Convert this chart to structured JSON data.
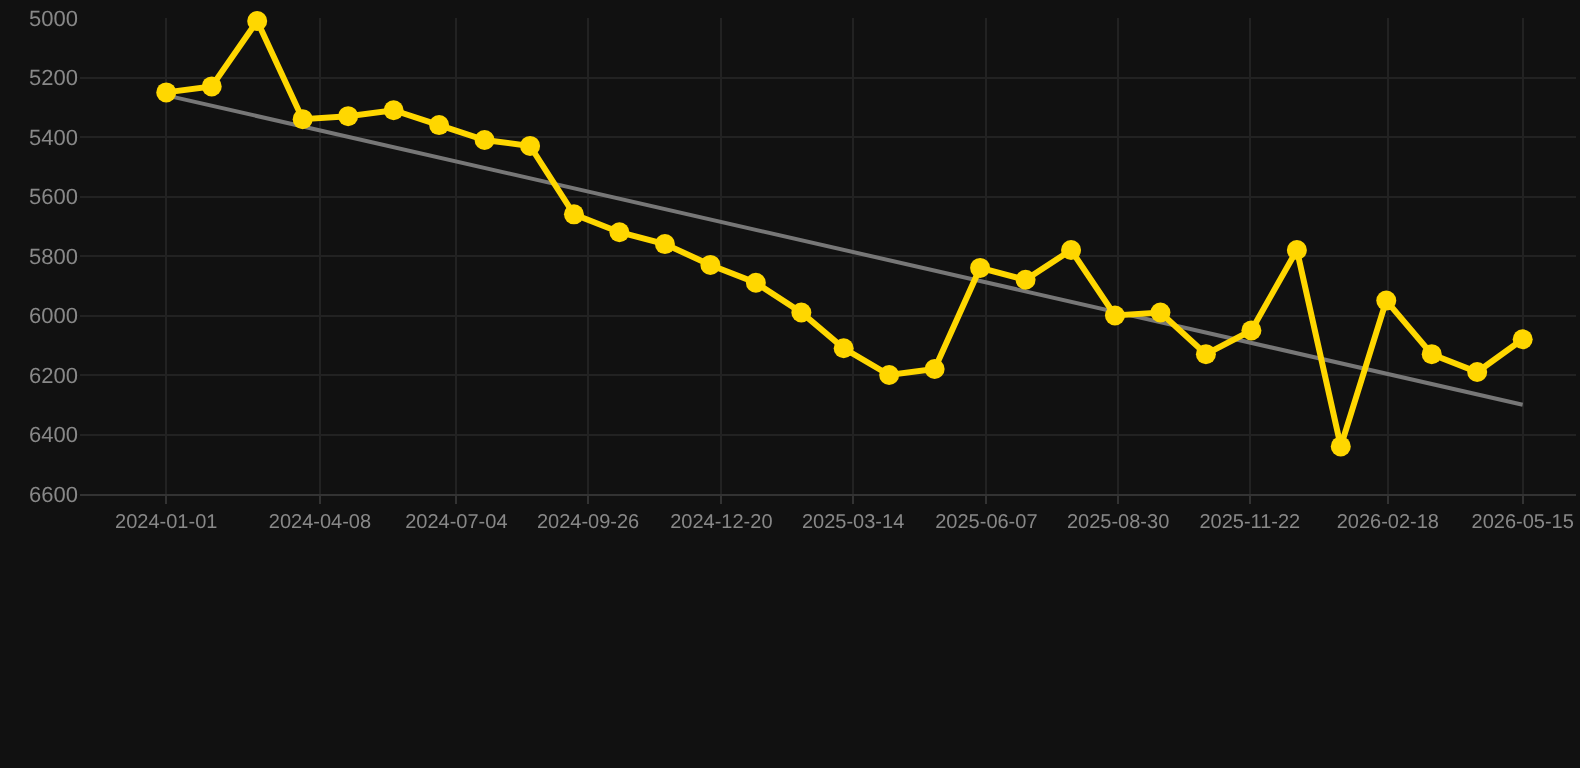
{
  "chart_data": {
    "type": "line",
    "x": [
      "2024-01-01",
      "2024-01-30",
      "2024-02-28",
      "2024-03-28",
      "2024-04-26",
      "2024-05-25",
      "2024-06-23",
      "2024-07-22",
      "2024-08-20",
      "2024-09-17",
      "2024-10-16",
      "2024-11-14",
      "2024-12-13",
      "2025-01-11",
      "2025-02-09",
      "2025-03-08",
      "2025-04-06",
      "2025-05-05",
      "2025-06-03",
      "2025-07-02",
      "2025-07-31",
      "2025-08-28",
      "2025-09-26",
      "2025-10-25",
      "2025-11-23",
      "2025-12-22",
      "2026-01-19",
      "2026-02-17",
      "2026-03-18",
      "2026-04-16",
      "2026-05-15"
    ],
    "series": [
      {
        "color": "#ffd700",
        "marker": "circle",
        "values": [
          5250,
          5230,
          5010,
          5340,
          5330,
          5310,
          5360,
          5410,
          5430,
          5660,
          5720,
          5760,
          5830,
          5890,
          5990,
          6110,
          6200,
          6180,
          5840,
          5880,
          5780,
          6000,
          5990,
          6130,
          6050,
          5780,
          6440,
          5950,
          6130,
          6190,
          6080
        ]
      },
      {
        "type": "line",
        "color": "#777777",
        "marker": "none",
        "x": [
          "2024-01-01",
          "2026-05-15"
        ],
        "values": [
          5260,
          6300
        ]
      }
    ],
    "xlim": [
      "2023-11-07",
      "2026-06-18"
    ],
    "xticks": [
      "2024-01-01",
      "2024-04-08",
      "2024-07-04",
      "2024-09-26",
      "2024-12-20",
      "2025-03-14",
      "2025-06-07",
      "2025-08-30",
      "2025-11-22",
      "2026-02-18",
      "2026-05-15"
    ],
    "ylim": [
      6600,
      5000
    ],
    "yticks": [
      5000,
      5200,
      5400,
      5600,
      5800,
      6000,
      6200,
      6400,
      6600
    ],
    "grid": true,
    "line_style": "solid"
  }
}
